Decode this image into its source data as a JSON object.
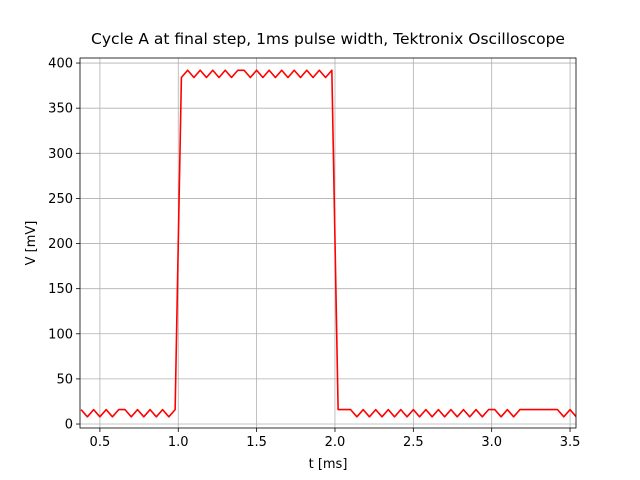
{
  "chart_data": {
    "type": "line",
    "title": "Cycle A at final step, 1ms pulse width, Tektronix Oscilloscope",
    "x_label": "t [ms]",
    "y_label": "V  [mV]",
    "x": [
      0.38,
      0.42,
      0.46,
      0.5,
      0.54,
      0.58,
      0.62,
      0.66,
      0.7,
      0.74,
      0.78,
      0.82,
      0.86,
      0.9,
      0.94,
      0.98,
      1.02,
      1.06,
      1.1,
      1.14,
      1.18,
      1.22,
      1.26,
      1.3,
      1.34,
      1.38,
      1.42,
      1.46,
      1.5,
      1.54,
      1.58,
      1.62,
      1.66,
      1.7,
      1.74,
      1.78,
      1.82,
      1.86,
      1.9,
      1.94,
      1.98,
      2.02,
      2.06,
      2.1,
      2.14,
      2.18,
      2.22,
      2.26,
      2.3,
      2.34,
      2.38,
      2.42,
      2.46,
      2.5,
      2.54,
      2.58,
      2.62,
      2.66,
      2.7,
      2.74,
      2.78,
      2.82,
      2.86,
      2.9,
      2.94,
      2.98,
      3.02,
      3.06,
      3.1,
      3.14,
      3.18,
      3.22,
      3.26,
      3.3,
      3.34,
      3.38,
      3.42,
      3.46,
      3.5,
      3.54
    ],
    "series": [
      {
        "color": "#ff0000",
        "values": [
          16,
          8,
          16,
          8,
          16,
          8,
          16,
          16,
          8,
          16,
          8,
          16,
          8,
          16,
          8,
          16,
          384,
          392,
          384,
          392,
          384,
          392,
          384,
          392,
          384,
          392,
          392,
          384,
          392,
          384,
          392,
          384,
          392,
          384,
          392,
          384,
          392,
          384,
          392,
          384,
          392,
          16,
          16,
          16,
          8,
          16,
          8,
          16,
          8,
          16,
          8,
          16,
          8,
          16,
          8,
          16,
          8,
          16,
          8,
          16,
          8,
          16,
          8,
          16,
          8,
          16,
          16,
          8,
          16,
          8,
          16,
          16,
          16,
          16,
          16,
          16,
          16,
          8,
          16,
          8
        ]
      }
    ],
    "xlim": [
      0.373,
      3.538
    ],
    "xticks": [
      0.5,
      {
        "value": 1,
        "label": "1.0"
      },
      1.5,
      {
        "value": 2,
        "label": "2.0"
      },
      2.5,
      {
        "value": 3,
        "label": "3.0"
      },
      3.5
    ],
    "ylim": [
      -4.4,
      405.6
    ],
    "yticks": [
      0,
      50,
      100,
      150,
      200,
      250,
      300,
      350,
      400
    ],
    "grid": true
  }
}
